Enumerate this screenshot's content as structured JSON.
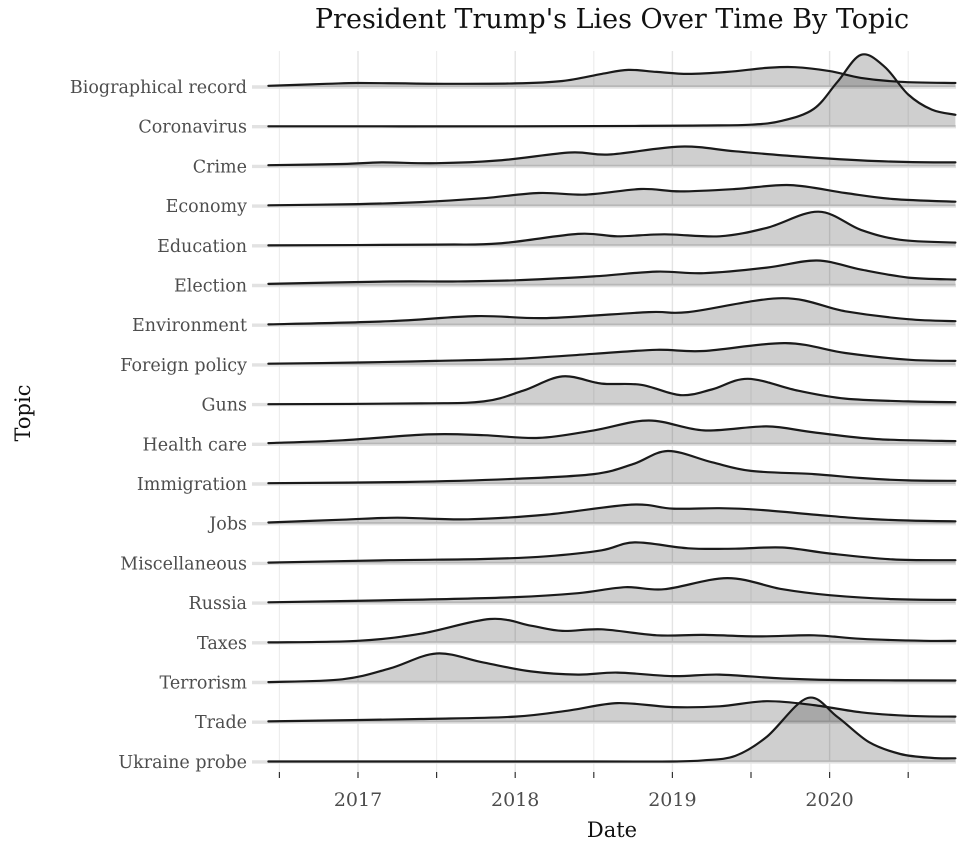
{
  "title": "President Trump's Lies Over Time By Topic",
  "axes": {
    "x_label": "Date",
    "y_label": "Topic",
    "x_tick_labels": [
      "2017",
      "2018",
      "2019",
      "2020"
    ]
  },
  "colors": {
    "curve_stroke": "#1a1a1a",
    "density_fill": "rgba(0,0,0,0.19)",
    "grid_major": "#e4e4e4",
    "grid_minor": "#ededed",
    "row_baseline": "#e2e2e2",
    "axis_tick": "#333333",
    "tick_label_text": "#4d4d4d",
    "title_text": "#111111"
  },
  "chart_data": {
    "type": "area",
    "subtype": "ridgeline",
    "title": "President Trump's Lies Over Time By Topic",
    "xlabel": "Date",
    "ylabel": "Topic",
    "x_domain": [
      2016.43,
      2020.82
    ],
    "x_major_ticks": [
      2017,
      2018,
      2019,
      2020
    ],
    "x_minor_ticks": [
      2016.5,
      2017.5,
      2018.5,
      2019.5,
      2020.5
    ],
    "grid": true,
    "legend": "none",
    "density_unit": "1.0 = one row spacing; points are [year, density]",
    "series": [
      {
        "label": "Biographical record",
        "points": [
          [
            2016.43,
            0.03
          ],
          [
            2016.8,
            0.08
          ],
          [
            2017.0,
            0.1
          ],
          [
            2017.3,
            0.09
          ],
          [
            2017.6,
            0.08
          ],
          [
            2018.0,
            0.09
          ],
          [
            2018.3,
            0.15
          ],
          [
            2018.55,
            0.33
          ],
          [
            2018.72,
            0.43
          ],
          [
            2018.9,
            0.38
          ],
          [
            2019.1,
            0.33
          ],
          [
            2019.35,
            0.38
          ],
          [
            2019.6,
            0.48
          ],
          [
            2019.78,
            0.5
          ],
          [
            2020.0,
            0.4
          ],
          [
            2020.2,
            0.23
          ],
          [
            2020.45,
            0.13
          ],
          [
            2020.8,
            0.1
          ]
        ]
      },
      {
        "label": "Coronavirus",
        "points": [
          [
            2016.43,
            0.01
          ],
          [
            2018.0,
            0.01
          ],
          [
            2018.8,
            0.02
          ],
          [
            2019.2,
            0.03
          ],
          [
            2019.5,
            0.05
          ],
          [
            2019.7,
            0.15
          ],
          [
            2019.9,
            0.45
          ],
          [
            2020.05,
            1.13
          ],
          [
            2020.2,
            1.81
          ],
          [
            2020.35,
            1.51
          ],
          [
            2020.5,
            0.81
          ],
          [
            2020.65,
            0.43
          ],
          [
            2020.8,
            0.3
          ]
        ]
      },
      {
        "label": "Crime",
        "points": [
          [
            2016.43,
            0.03
          ],
          [
            2016.9,
            0.06
          ],
          [
            2017.15,
            0.1
          ],
          [
            2017.5,
            0.08
          ],
          [
            2017.9,
            0.15
          ],
          [
            2018.35,
            0.35
          ],
          [
            2018.6,
            0.3
          ],
          [
            2019.05,
            0.5
          ],
          [
            2019.4,
            0.38
          ],
          [
            2019.8,
            0.25
          ],
          [
            2020.2,
            0.15
          ],
          [
            2020.5,
            0.11
          ],
          [
            2020.8,
            0.1
          ]
        ]
      },
      {
        "label": "Economy",
        "points": [
          [
            2016.43,
            0.02
          ],
          [
            2017.0,
            0.05
          ],
          [
            2017.4,
            0.1
          ],
          [
            2017.8,
            0.2
          ],
          [
            2018.15,
            0.33
          ],
          [
            2018.45,
            0.29
          ],
          [
            2018.8,
            0.43
          ],
          [
            2019.05,
            0.37
          ],
          [
            2019.4,
            0.43
          ],
          [
            2019.75,
            0.53
          ],
          [
            2020.1,
            0.33
          ],
          [
            2020.4,
            0.18
          ],
          [
            2020.8,
            0.11
          ]
        ]
      },
      {
        "label": "Education",
        "points": [
          [
            2016.43,
            0.01
          ],
          [
            2017.5,
            0.03
          ],
          [
            2017.9,
            0.06
          ],
          [
            2018.4,
            0.3
          ],
          [
            2018.65,
            0.24
          ],
          [
            2018.95,
            0.29
          ],
          [
            2019.3,
            0.24
          ],
          [
            2019.6,
            0.45
          ],
          [
            2019.93,
            0.86
          ],
          [
            2020.2,
            0.4
          ],
          [
            2020.45,
            0.15
          ],
          [
            2020.8,
            0.08
          ]
        ]
      },
      {
        "label": "Election",
        "points": [
          [
            2016.43,
            0.04
          ],
          [
            2017.2,
            0.1
          ],
          [
            2017.6,
            0.1
          ],
          [
            2018.0,
            0.13
          ],
          [
            2018.5,
            0.23
          ],
          [
            2018.9,
            0.35
          ],
          [
            2019.2,
            0.31
          ],
          [
            2019.6,
            0.45
          ],
          [
            2019.92,
            0.63
          ],
          [
            2020.2,
            0.4
          ],
          [
            2020.5,
            0.2
          ],
          [
            2020.8,
            0.15
          ]
        ]
      },
      {
        "label": "Environment",
        "points": [
          [
            2016.43,
            0.02
          ],
          [
            2017.2,
            0.1
          ],
          [
            2017.75,
            0.23
          ],
          [
            2018.2,
            0.18
          ],
          [
            2018.85,
            0.33
          ],
          [
            2019.1,
            0.33
          ],
          [
            2019.7,
            0.68
          ],
          [
            2020.1,
            0.35
          ],
          [
            2020.5,
            0.15
          ],
          [
            2020.8,
            0.1
          ]
        ]
      },
      {
        "label": "Foreign policy",
        "points": [
          [
            2016.43,
            0.03
          ],
          [
            2017.0,
            0.06
          ],
          [
            2017.5,
            0.1
          ],
          [
            2018.0,
            0.15
          ],
          [
            2018.5,
            0.28
          ],
          [
            2018.9,
            0.38
          ],
          [
            2019.2,
            0.35
          ],
          [
            2019.72,
            0.55
          ],
          [
            2020.1,
            0.3
          ],
          [
            2020.5,
            0.13
          ],
          [
            2020.8,
            0.1
          ]
        ]
      },
      {
        "label": "Guns",
        "points": [
          [
            2016.43,
            0.01
          ],
          [
            2017.4,
            0.03
          ],
          [
            2017.8,
            0.08
          ],
          [
            2018.05,
            0.35
          ],
          [
            2018.3,
            0.71
          ],
          [
            2018.55,
            0.53
          ],
          [
            2018.8,
            0.5
          ],
          [
            2019.05,
            0.24
          ],
          [
            2019.25,
            0.38
          ],
          [
            2019.48,
            0.65
          ],
          [
            2019.8,
            0.35
          ],
          [
            2020.1,
            0.15
          ],
          [
            2020.5,
            0.08
          ],
          [
            2020.8,
            0.06
          ]
        ]
      },
      {
        "label": "Health care",
        "points": [
          [
            2016.43,
            0.03
          ],
          [
            2016.9,
            0.1
          ],
          [
            2017.45,
            0.25
          ],
          [
            2017.8,
            0.23
          ],
          [
            2018.15,
            0.16
          ],
          [
            2018.5,
            0.35
          ],
          [
            2018.85,
            0.6
          ],
          [
            2019.2,
            0.35
          ],
          [
            2019.6,
            0.45
          ],
          [
            2019.9,
            0.3
          ],
          [
            2020.3,
            0.13
          ],
          [
            2020.8,
            0.08
          ]
        ]
      },
      {
        "label": "Immigration",
        "points": [
          [
            2016.43,
            0.02
          ],
          [
            2017.3,
            0.05
          ],
          [
            2018.0,
            0.13
          ],
          [
            2018.5,
            0.25
          ],
          [
            2018.75,
            0.5
          ],
          [
            2018.97,
            0.83
          ],
          [
            2019.25,
            0.55
          ],
          [
            2019.5,
            0.33
          ],
          [
            2019.9,
            0.25
          ],
          [
            2020.2,
            0.15
          ],
          [
            2020.5,
            0.09
          ],
          [
            2020.8,
            0.08
          ]
        ]
      },
      {
        "label": "Jobs",
        "points": [
          [
            2016.43,
            0.03
          ],
          [
            2016.9,
            0.1
          ],
          [
            2017.25,
            0.15
          ],
          [
            2017.7,
            0.11
          ],
          [
            2018.2,
            0.23
          ],
          [
            2018.74,
            0.48
          ],
          [
            2019.0,
            0.38
          ],
          [
            2019.3,
            0.39
          ],
          [
            2019.55,
            0.35
          ],
          [
            2019.9,
            0.23
          ],
          [
            2020.2,
            0.13
          ],
          [
            2020.5,
            0.08
          ],
          [
            2020.8,
            0.06
          ]
        ]
      },
      {
        "label": "Miscellaneous",
        "points": [
          [
            2016.43,
            0.02
          ],
          [
            2017.2,
            0.08
          ],
          [
            2017.8,
            0.11
          ],
          [
            2018.2,
            0.18
          ],
          [
            2018.55,
            0.33
          ],
          [
            2018.76,
            0.53
          ],
          [
            2019.1,
            0.38
          ],
          [
            2019.4,
            0.37
          ],
          [
            2019.7,
            0.4
          ],
          [
            2020.0,
            0.25
          ],
          [
            2020.4,
            0.1
          ],
          [
            2020.8,
            0.08
          ]
        ]
      },
      {
        "label": "Russia",
        "points": [
          [
            2016.43,
            0.02
          ],
          [
            2017.3,
            0.08
          ],
          [
            2018.0,
            0.15
          ],
          [
            2018.4,
            0.25
          ],
          [
            2018.7,
            0.4
          ],
          [
            2018.95,
            0.35
          ],
          [
            2019.35,
            0.63
          ],
          [
            2019.7,
            0.35
          ],
          [
            2020.0,
            0.2
          ],
          [
            2020.4,
            0.1
          ],
          [
            2020.8,
            0.08
          ]
        ]
      },
      {
        "label": "Taxes",
        "points": [
          [
            2016.43,
            0.01
          ],
          [
            2017.0,
            0.05
          ],
          [
            2017.4,
            0.23
          ],
          [
            2017.84,
            0.6
          ],
          [
            2018.1,
            0.43
          ],
          [
            2018.3,
            0.3
          ],
          [
            2018.55,
            0.34
          ],
          [
            2018.9,
            0.19
          ],
          [
            2019.2,
            0.2
          ],
          [
            2019.55,
            0.16
          ],
          [
            2019.9,
            0.19
          ],
          [
            2020.2,
            0.1
          ],
          [
            2020.6,
            0.05
          ],
          [
            2020.8,
            0.05
          ]
        ]
      },
      {
        "label": "Terrorism",
        "points": [
          [
            2016.43,
            0.01
          ],
          [
            2016.9,
            0.08
          ],
          [
            2017.2,
            0.35
          ],
          [
            2017.5,
            0.73
          ],
          [
            2017.8,
            0.5
          ],
          [
            2018.1,
            0.28
          ],
          [
            2018.4,
            0.2
          ],
          [
            2018.65,
            0.25
          ],
          [
            2019.0,
            0.16
          ],
          [
            2019.3,
            0.2
          ],
          [
            2019.7,
            0.1
          ],
          [
            2020.1,
            0.06
          ],
          [
            2020.8,
            0.05
          ]
        ]
      },
      {
        "label": "Trade",
        "points": [
          [
            2016.43,
            0.02
          ],
          [
            2017.4,
            0.08
          ],
          [
            2018.0,
            0.14
          ],
          [
            2018.35,
            0.3
          ],
          [
            2018.65,
            0.48
          ],
          [
            2019.0,
            0.38
          ],
          [
            2019.3,
            0.4
          ],
          [
            2019.6,
            0.53
          ],
          [
            2019.9,
            0.43
          ],
          [
            2020.2,
            0.25
          ],
          [
            2020.5,
            0.16
          ],
          [
            2020.8,
            0.14
          ]
        ]
      },
      {
        "label": "Ukraine probe",
        "points": [
          [
            2016.43,
            0.01
          ],
          [
            2018.5,
            0.01
          ],
          [
            2019.0,
            0.01
          ],
          [
            2019.2,
            0.04
          ],
          [
            2019.4,
            0.15
          ],
          [
            2019.6,
            0.63
          ],
          [
            2019.86,
            1.61
          ],
          [
            2020.05,
            1.13
          ],
          [
            2020.25,
            0.5
          ],
          [
            2020.45,
            0.2
          ],
          [
            2020.65,
            0.1
          ],
          [
            2020.8,
            0.09
          ]
        ]
      }
    ]
  }
}
